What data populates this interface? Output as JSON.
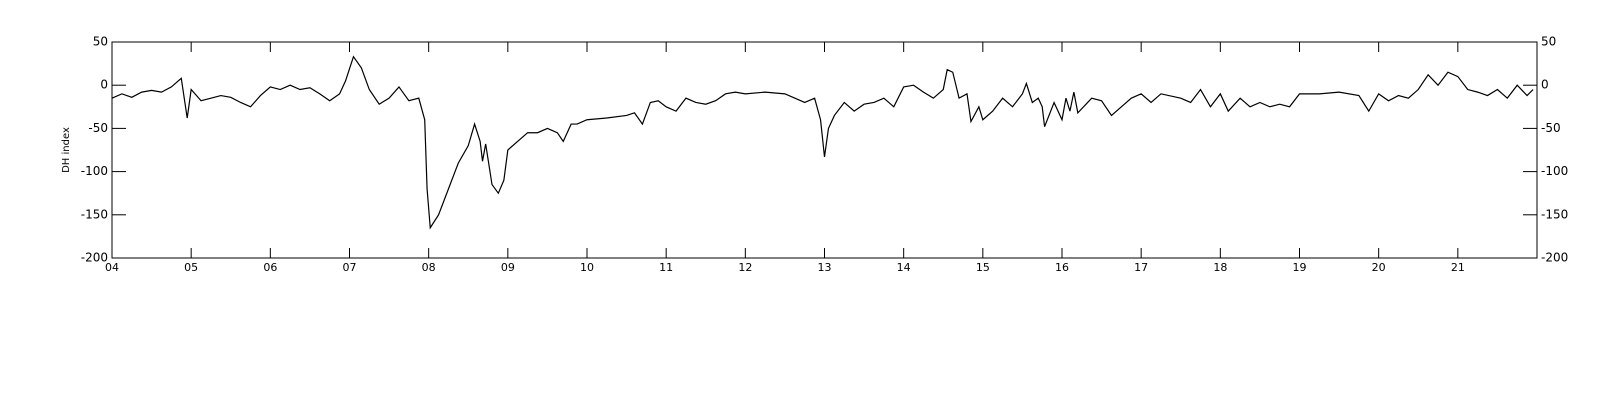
{
  "chart_data": {
    "type": "line",
    "y_label": "DH index",
    "x": [
      4.0,
      4.125,
      4.25,
      4.375,
      4.5,
      4.625,
      4.75,
      4.875,
      4.95,
      5.0,
      5.125,
      5.25,
      5.375,
      5.5,
      5.625,
      5.75,
      5.875,
      6.0,
      6.125,
      6.25,
      6.375,
      6.5,
      6.625,
      6.75,
      6.875,
      6.95,
      7.05,
      7.15,
      7.25,
      7.375,
      7.5,
      7.625,
      7.75,
      7.875,
      7.95,
      7.98,
      8.02,
      8.125,
      8.25,
      8.375,
      8.5,
      8.58,
      8.65,
      8.68,
      8.72,
      8.8,
      8.88,
      8.95,
      9.0,
      9.125,
      9.25,
      9.375,
      9.5,
      9.625,
      9.7,
      9.8,
      9.875,
      10.0,
      10.25,
      10.5,
      10.6,
      10.7,
      10.8,
      10.9,
      11.0,
      11.125,
      11.25,
      11.375,
      11.5,
      11.625,
      11.75,
      11.875,
      12.0,
      12.25,
      12.5,
      12.75,
      12.875,
      12.95,
      13.0,
      13.05,
      13.125,
      13.25,
      13.375,
      13.5,
      13.625,
      13.75,
      13.875,
      14.0,
      14.125,
      14.25,
      14.375,
      14.5,
      14.55,
      14.62,
      14.7,
      14.8,
      14.85,
      14.95,
      15.0,
      15.125,
      15.25,
      15.375,
      15.5,
      15.55,
      15.625,
      15.7,
      15.75,
      15.78,
      15.9,
      16.0,
      16.05,
      16.1,
      16.15,
      16.2,
      16.375,
      16.5,
      16.625,
      16.75,
      16.875,
      17.0,
      17.125,
      17.25,
      17.5,
      17.625,
      17.75,
      17.875,
      18.0,
      18.1,
      18.25,
      18.375,
      18.5,
      18.625,
      18.75,
      18.875,
      19.0,
      19.25,
      19.5,
      19.75,
      19.875,
      20.0,
      20.125,
      20.25,
      20.375,
      20.5,
      20.625,
      20.75,
      20.875,
      21.0,
      21.125,
      21.25,
      21.375,
      21.5,
      21.625,
      21.75,
      21.875,
      21.95
    ],
    "values": [
      -15,
      -10,
      -14,
      -8,
      -6,
      -8,
      -2,
      8,
      -38,
      -5,
      -18,
      -15,
      -12,
      -14,
      -20,
      -25,
      -12,
      -2,
      -5,
      0,
      -5,
      -3,
      -10,
      -18,
      -10,
      5,
      33,
      20,
      -5,
      -22,
      -15,
      -2,
      -18,
      -15,
      -40,
      -120,
      -165,
      -150,
      -120,
      -90,
      -70,
      -45,
      -65,
      -88,
      -68,
      -115,
      -125,
      -110,
      -75,
      -65,
      -55,
      -55,
      -50,
      -55,
      -65,
      -45,
      -45,
      -40,
      -38,
      -35,
      -32,
      -45,
      -20,
      -18,
      -25,
      -30,
      -15,
      -20,
      -22,
      -18,
      -10,
      -8,
      -10,
      -8,
      -10,
      -20,
      -15,
      -40,
      -83,
      -50,
      -35,
      -20,
      -30,
      -22,
      -20,
      -15,
      -25,
      -2,
      0,
      -8,
      -15,
      -5,
      18,
      15,
      -15,
      -10,
      -42,
      -25,
      -40,
      -30,
      -15,
      -25,
      -10,
      2,
      -20,
      -15,
      -25,
      -48,
      -20,
      -40,
      -15,
      -30,
      -8,
      -32,
      -15,
      -18,
      -35,
      -25,
      -15,
      -10,
      -20,
      -10,
      -15,
      -20,
      -5,
      -25,
      -10,
      -30,
      -15,
      -25,
      -20,
      -25,
      -22,
      -25,
      -10,
      -10,
      -8,
      -12,
      -30,
      -10,
      -18,
      -12,
      -15,
      -5,
      12,
      0,
      15,
      10,
      -5,
      -8,
      -12,
      -5,
      -15,
      0,
      -12,
      -5
    ],
    "color": "#000000",
    "xlim": [
      4,
      22
    ],
    "xticks": [
      {
        "value": 4,
        "label": "04"
      },
      {
        "value": 5,
        "label": "05"
      },
      {
        "value": 6,
        "label": "06"
      },
      {
        "value": 7,
        "label": "07"
      },
      {
        "value": 8,
        "label": "08"
      },
      {
        "value": 9,
        "label": "09"
      },
      10,
      11,
      12,
      13,
      14,
      15,
      16,
      17,
      18,
      19,
      20,
      21
    ],
    "ylim": [
      -200,
      50
    ],
    "yticks": [
      -200,
      -150,
      -100,
      -50,
      0,
      50
    ],
    "right_axis_labels": true
  }
}
